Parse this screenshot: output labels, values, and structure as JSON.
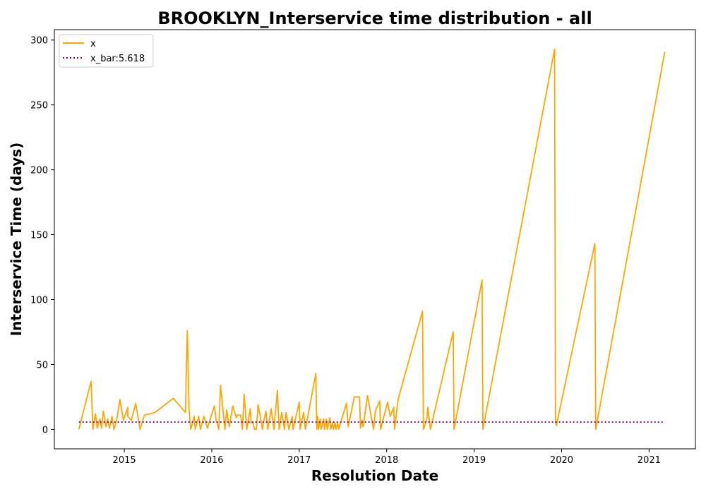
{
  "chart_data": {
    "type": "line",
    "title": "BROOKLYN_Interservice time distribution - all",
    "xlabel": "Resolution Date",
    "ylabel": "Interservice Time (days)",
    "xlim": [
      2014.2,
      2021.53
    ],
    "ylim": [
      -15,
      308
    ],
    "x_ticks": [
      2015,
      2016,
      2017,
      2018,
      2019,
      2020,
      2021
    ],
    "y_ticks": [
      0,
      50,
      100,
      150,
      200,
      250,
      300
    ],
    "grid": false,
    "legend_position": "top-left",
    "series": [
      {
        "name": "x",
        "color": "#ffa500",
        "style": "solid",
        "x": [
          2014.48,
          2014.62,
          2014.64,
          2014.67,
          2014.69,
          2014.72,
          2014.74,
          2014.76,
          2014.79,
          2014.81,
          2014.83,
          2014.86,
          2014.88,
          2014.91,
          2014.95,
          2014.99,
          2015.04,
          2015.04,
          2015.08,
          2015.13,
          2015.18,
          2015.23,
          2015.35,
          2015.56,
          2015.7,
          2015.71,
          2015.72,
          2015.74,
          2015.76,
          2015.8,
          2015.81,
          2015.85,
          2015.87,
          2015.91,
          2015.95,
          2016.03,
          2016.05,
          2016.08,
          2016.1,
          2016.15,
          2016.17,
          2016.2,
          2016.24,
          2016.28,
          2016.29,
          2016.33,
          2016.35,
          2016.37,
          2016.4,
          2016.44,
          2016.45,
          2016.47,
          2016.49,
          2016.51,
          2016.53,
          2016.58,
          2016.59,
          2016.62,
          2016.64,
          2016.68,
          2016.71,
          2016.75,
          2016.77,
          2016.8,
          2016.83,
          2016.85,
          2016.88,
          2016.92,
          2016.93,
          2017.0,
          2017.01,
          2017.05,
          2017.07,
          2017.19,
          2017.2,
          2017.21,
          2017.22,
          2017.24,
          2017.25,
          2017.28,
          2017.29,
          2017.31,
          2017.32,
          2017.35,
          2017.36,
          2017.38,
          2017.39,
          2017.41,
          2017.42,
          2017.44,
          2017.45,
          2017.54,
          2017.56,
          2017.63,
          2017.69,
          2017.7,
          2017.72,
          2017.73,
          2017.78,
          2017.85,
          2017.87,
          2017.92,
          2017.93,
          2018.01,
          2018.04,
          2018.08,
          2018.09,
          2018.13,
          2018.41,
          2018.42,
          2018.46,
          2018.47,
          2018.5,
          2018.76,
          2018.77,
          2019.09,
          2019.1,
          2019.92,
          2019.93,
          2019.94,
          2020.38,
          2020.39,
          2021.18
        ],
        "y": [
          0,
          37,
          0,
          12,
          1,
          8,
          1,
          14,
          2,
          8,
          1,
          10,
          0,
          6,
          23,
          7,
          17,
          10,
          7,
          20,
          0,
          11,
          13,
          24,
          13,
          51,
          76,
          15,
          0,
          10,
          0,
          10,
          0,
          10,
          1,
          18,
          7,
          0,
          34,
          0,
          15,
          2,
          18,
          9,
          11,
          11,
          0,
          27,
          0,
          16,
          5,
          5,
          0,
          0,
          19,
          0,
          5,
          14,
          0,
          16,
          0,
          30,
          0,
          13,
          0,
          13,
          0,
          10,
          0,
          21,
          0,
          13,
          0,
          43,
          0,
          10,
          0,
          8,
          0,
          8,
          0,
          8,
          0,
          9,
          0,
          5,
          0,
          5,
          0,
          5,
          0,
          20,
          2,
          25,
          25,
          1,
          7,
          2,
          26,
          0,
          14,
          22,
          0,
          21,
          10,
          17,
          0,
          23,
          91,
          0,
          8,
          17,
          0,
          75,
          0,
          115,
          0,
          293,
          5,
          3,
          143,
          0,
          291
        ]
      },
      {
        "name": "x_bar:5.618",
        "color": "#800080",
        "style": "dotted",
        "x": [
          2014.48,
          2021.18
        ],
        "y": [
          5.618,
          5.618
        ]
      }
    ]
  }
}
